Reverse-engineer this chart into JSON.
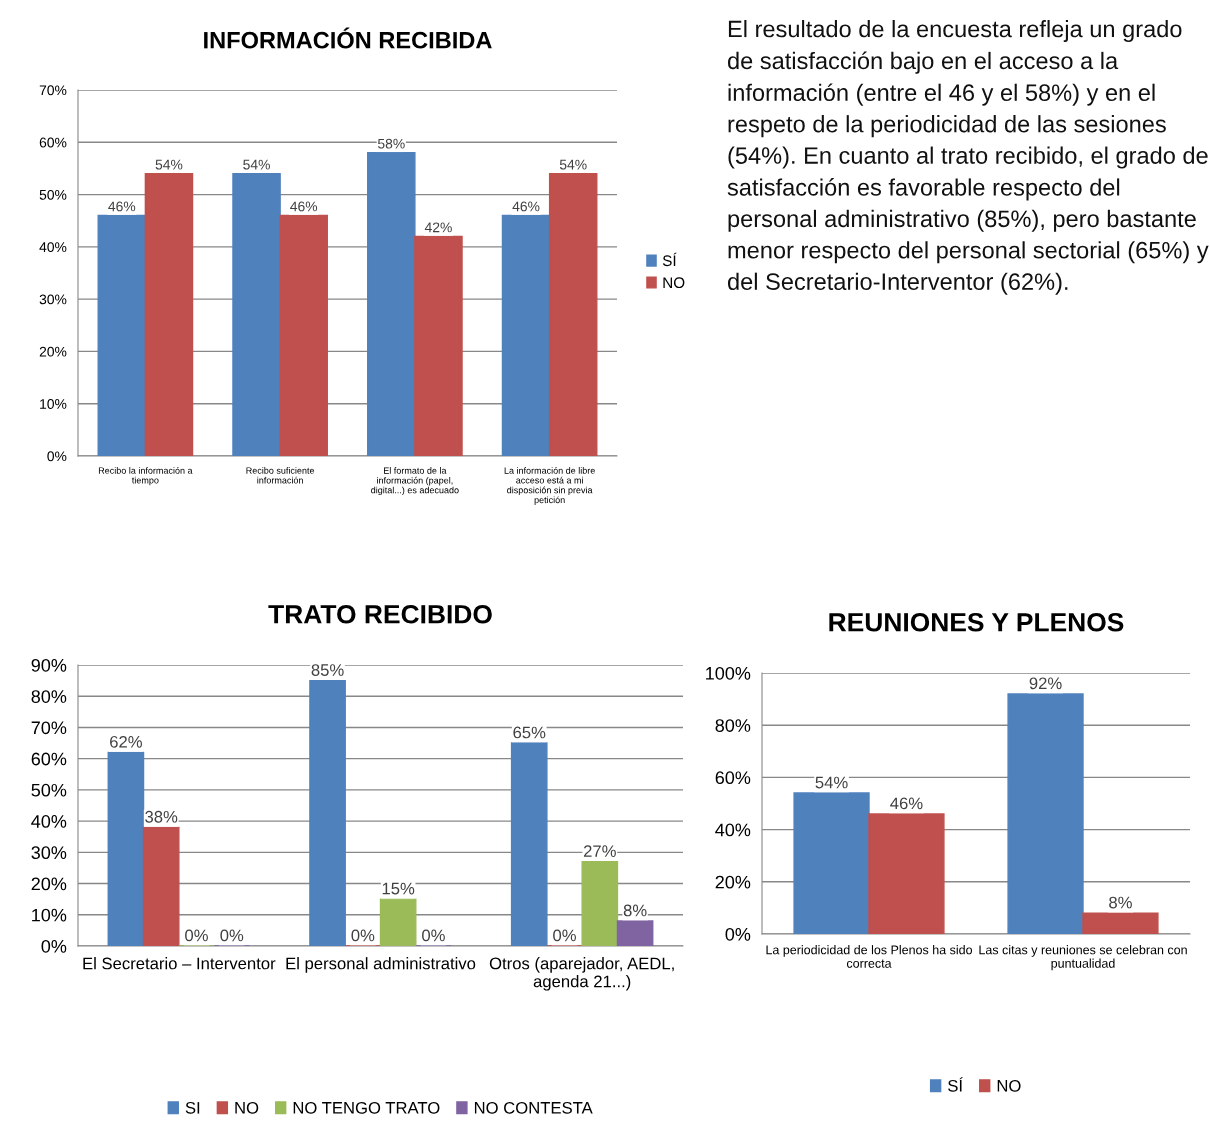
{
  "chart_data": [
    {
      "type": "bar",
      "title": "INFORMACIÓN RECIBIDA",
      "categories": [
        "Recibo la información a\ntiempo",
        "Recibo suficiente\ninformación",
        "El formato de la\ninformación (papel,\ndigital...) es adecuado",
        "La información de libre\nacceso está a mi\ndisposición sin previa\npetición"
      ],
      "series": [
        {
          "name": "SÍ",
          "color": "#4f81bd",
          "values": [
            46,
            54,
            58,
            46
          ],
          "value_labels": [
            "46%",
            "54%",
            "58%",
            "46%"
          ]
        },
        {
          "name": "NO",
          "color": "#c0504d",
          "values": [
            54,
            46,
            42,
            54
          ],
          "value_labels": [
            "54%",
            "46%",
            "42%",
            "54%"
          ]
        }
      ],
      "ylim": [
        0,
        70
      ],
      "yticks": [
        {
          "value": 0,
          "label": "0%"
        },
        {
          "value": 10,
          "label": "10%"
        },
        {
          "value": 20,
          "label": "20%"
        },
        {
          "value": 30,
          "label": "30%"
        },
        {
          "value": 40,
          "label": "40%"
        },
        {
          "value": 50,
          "label": "50%"
        },
        {
          "value": 60,
          "label": "60%"
        },
        {
          "value": 70,
          "label": "70%"
        }
      ],
      "grid": "y",
      "legend": "right"
    },
    {
      "type": "other",
      "annotations": [
        "El resultado de la encuesta refleja un grado de satisfacción bajo en el acceso a la información (entre el 46 y el 58%) y en el respeto de la periodicidad de las sesiones (54%). En cuanto al trato recibido, el grado de satisfacción es favorable respecto del personal administrativo (85%), pero bastante menor respecto del personal sectorial (65%) y del Secretario-Interventor (62%)."
      ]
    },
    {
      "type": "bar",
      "title": "TRATO RECIBIDO",
      "categories": [
        "El Secretario – Interventor",
        "El personal administrativo",
        "Otros (aparejador, AEDL,\nagenda 21...)"
      ],
      "series": [
        {
          "name": "SI",
          "color": "#4f81bd",
          "values": [
            62,
            85,
            65
          ],
          "value_labels": [
            "62%",
            "85%",
            "65%"
          ]
        },
        {
          "name": "NO",
          "color": "#c0504d",
          "values": [
            38,
            0,
            0
          ],
          "value_labels": [
            "38%",
            "0%",
            "0%"
          ]
        },
        {
          "name": "NO TENGO TRATO",
          "color": "#9bbb59",
          "values": [
            0,
            15,
            27
          ],
          "value_labels": [
            "0%",
            "15%",
            "27%"
          ]
        },
        {
          "name": "NO CONTESTA",
          "color": "#8064a2",
          "values": [
            0,
            0,
            8
          ],
          "value_labels": [
            "0%",
            "0%",
            "8%"
          ]
        }
      ],
      "ylim": [
        0,
        90
      ],
      "yticks": [
        {
          "value": 0,
          "label": "0%"
        },
        {
          "value": 10,
          "label": "10%"
        },
        {
          "value": 20,
          "label": "20%"
        },
        {
          "value": 30,
          "label": "30%"
        },
        {
          "value": 40,
          "label": "40%"
        },
        {
          "value": 50,
          "label": "50%"
        },
        {
          "value": 60,
          "label": "60%"
        },
        {
          "value": 70,
          "label": "70%"
        },
        {
          "value": 80,
          "label": "80%"
        },
        {
          "value": 90,
          "label": "90%"
        }
      ],
      "grid": "y",
      "legend": "bottom"
    },
    {
      "type": "bar",
      "title": "REUNIONES Y PLENOS",
      "categories": [
        "La periodicidad de los Plenos ha sido\ncorrecta",
        "Las citas y reuniones se celebran con\npuntualidad"
      ],
      "series": [
        {
          "name": "SÍ",
          "color": "#4f81bd",
          "values": [
            54,
            92
          ],
          "value_labels": [
            "54%",
            "92%"
          ]
        },
        {
          "name": "NO",
          "color": "#c0504d",
          "values": [
            46,
            8
          ],
          "value_labels": [
            "46%",
            "8%"
          ]
        }
      ],
      "ylim": [
        0,
        100
      ],
      "yticks": [
        {
          "value": 0,
          "label": "0%"
        },
        {
          "value": 20,
          "label": "20%"
        },
        {
          "value": 40,
          "label": "40%"
        },
        {
          "value": 60,
          "label": "60%"
        },
        {
          "value": 80,
          "label": "80%"
        },
        {
          "value": 100,
          "label": "100%"
        }
      ],
      "grid": "y",
      "legend": "bottom"
    }
  ]
}
